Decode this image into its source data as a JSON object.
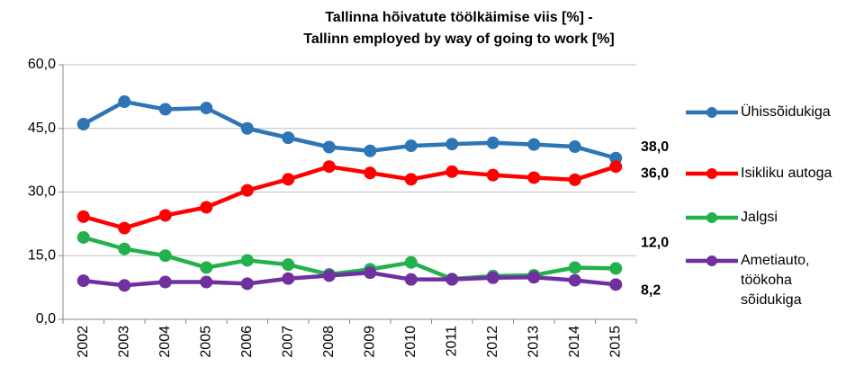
{
  "chart_data": {
    "type": "line",
    "title": "Tallinna hõivatute töölkäimise viis [%] -\nTallinn employed  by way of going to work [%]",
    "categories": [
      "2002",
      "2003",
      "2004",
      "2005",
      "2006",
      "2007",
      "2008",
      "2009",
      "2010",
      "2011",
      "2012",
      "2013",
      "2014",
      "2015"
    ],
    "series": [
      {
        "name": "Ühissõidukiga",
        "color": "#2e75b6",
        "values": [
          46.0,
          51.3,
          49.5,
          49.8,
          45.0,
          42.8,
          40.6,
          39.7,
          40.9,
          41.3,
          41.6,
          41.2,
          40.7,
          38.0
        ],
        "value_labels": [
          null,
          null,
          null,
          null,
          null,
          null,
          null,
          null,
          null,
          null,
          null,
          null,
          null,
          "38,0"
        ]
      },
      {
        "name": "Isikliku autoga",
        "color": "#ff0000",
        "values": [
          24.2,
          21.5,
          24.5,
          26.4,
          30.4,
          33.0,
          36.0,
          34.5,
          33.0,
          34.8,
          34.0,
          33.4,
          32.9,
          36.0
        ],
        "value_labels": [
          null,
          null,
          null,
          null,
          null,
          null,
          null,
          null,
          null,
          null,
          null,
          null,
          null,
          "36,0"
        ]
      },
      {
        "name": "Jalgsi",
        "color": "#22b14c",
        "values": [
          19.3,
          16.6,
          15.0,
          12.2,
          13.9,
          12.9,
          10.6,
          11.8,
          13.4,
          9.5,
          10.2,
          10.4,
          12.2,
          12.0
        ],
        "value_labels": [
          null,
          null,
          null,
          null,
          null,
          null,
          null,
          null,
          null,
          null,
          null,
          null,
          null,
          "12,0"
        ]
      },
      {
        "name": "Ametiauto, töökoha sõidukiga",
        "color": "#7030a0",
        "values": [
          9.1,
          8.0,
          8.8,
          8.8,
          8.4,
          9.6,
          10.3,
          11.0,
          9.4,
          9.4,
          9.8,
          9.9,
          9.2,
          8.2
        ],
        "value_labels": [
          null,
          null,
          null,
          null,
          null,
          null,
          null,
          null,
          null,
          null,
          null,
          null,
          null,
          "8,2"
        ]
      }
    ],
    "ylim": [
      0,
      60
    ],
    "yticks": [
      {
        "value": 0,
        "label": "0,0"
      },
      {
        "value": 15,
        "label": "15,0"
      },
      {
        "value": 30,
        "label": "30,0"
      },
      {
        "value": 45,
        "label": "45,0"
      },
      {
        "value": 60,
        "label": "60,0"
      }
    ],
    "grid": true,
    "legend": "right"
  }
}
